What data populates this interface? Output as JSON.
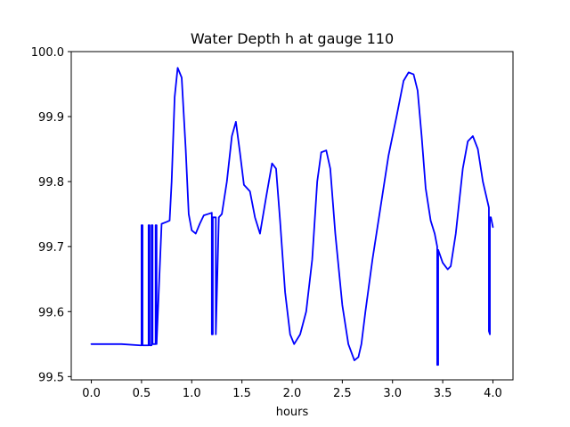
{
  "chart_data": {
    "type": "line",
    "title": "Water Depth h at gauge 110",
    "xlabel": "hours",
    "ylabel": "",
    "xlim": [
      -0.2,
      4.2
    ],
    "ylim": [
      99.495,
      100.0
    ],
    "x_ticks": [
      0.0,
      0.5,
      1.0,
      1.5,
      2.0,
      2.5,
      3.0,
      3.5,
      4.0
    ],
    "x_tick_labels": [
      "0.0",
      "0.5",
      "1.0",
      "1.5",
      "2.0",
      "2.5",
      "3.0",
      "3.5",
      "4.0"
    ],
    "y_ticks": [
      99.5,
      99.6,
      99.7,
      99.8,
      99.9,
      100.0
    ],
    "y_tick_labels": [
      "99.5",
      "99.6",
      "99.7",
      "99.8",
      "99.9",
      "100.0"
    ],
    "grid": false,
    "legend": "none",
    "series": [
      {
        "color": "#0000ff",
        "x": [
          0.0,
          0.3,
          0.49,
          0.5,
          0.5,
          0.51,
          0.51,
          0.57,
          0.57,
          0.58,
          0.58,
          0.6,
          0.6,
          0.61,
          0.61,
          0.64,
          0.64,
          0.65,
          0.65,
          0.7,
          0.75,
          0.78,
          0.8,
          0.83,
          0.86,
          0.9,
          0.94,
          0.97,
          1.0,
          1.04,
          1.08,
          1.12,
          1.16,
          1.2,
          1.2,
          1.21,
          1.21,
          1.24,
          1.24,
          1.27,
          1.3,
          1.35,
          1.4,
          1.44,
          1.48,
          1.52,
          1.58,
          1.63,
          1.68,
          1.74,
          1.8,
          1.84,
          1.88,
          1.93,
          1.98,
          2.02,
          2.08,
          2.14,
          2.2,
          2.25,
          2.29,
          2.34,
          2.38,
          2.43,
          2.5,
          2.56,
          2.62,
          2.66,
          2.69,
          2.73,
          2.8,
          2.88,
          2.96,
          3.04,
          3.11,
          3.16,
          3.21,
          3.25,
          3.29,
          3.33,
          3.38,
          3.42,
          3.445,
          3.445,
          3.455,
          3.455,
          3.5,
          3.55,
          3.58,
          3.63,
          3.7,
          3.75,
          3.8,
          3.85,
          3.9,
          3.96,
          3.96,
          3.97,
          3.97,
          3.98,
          4.0
        ],
        "y": [
          99.55,
          99.55,
          99.548,
          99.548,
          99.733,
          99.733,
          99.548,
          99.548,
          99.733,
          99.733,
          99.548,
          99.548,
          99.733,
          99.733,
          99.55,
          99.55,
          99.733,
          99.733,
          99.55,
          99.735,
          99.738,
          99.74,
          99.8,
          99.93,
          99.975,
          99.96,
          99.85,
          99.75,
          99.725,
          99.72,
          99.735,
          99.748,
          99.75,
          99.752,
          99.565,
          99.565,
          99.745,
          99.745,
          99.565,
          99.745,
          99.75,
          99.8,
          99.87,
          99.892,
          99.845,
          99.795,
          99.785,
          99.745,
          99.72,
          99.775,
          99.828,
          99.82,
          99.74,
          99.63,
          99.565,
          99.55,
          99.565,
          99.6,
          99.68,
          99.8,
          99.845,
          99.848,
          99.82,
          99.72,
          99.61,
          99.55,
          99.525,
          99.53,
          99.55,
          99.6,
          99.68,
          99.76,
          99.84,
          99.9,
          99.955,
          99.968,
          99.965,
          99.94,
          99.87,
          99.79,
          99.74,
          99.72,
          99.7,
          99.518,
          99.518,
          99.695,
          99.675,
          99.665,
          99.67,
          99.72,
          99.82,
          99.862,
          99.87,
          99.85,
          99.8,
          99.76,
          99.57,
          99.565,
          99.745,
          99.745,
          99.73
        ]
      }
    ]
  }
}
